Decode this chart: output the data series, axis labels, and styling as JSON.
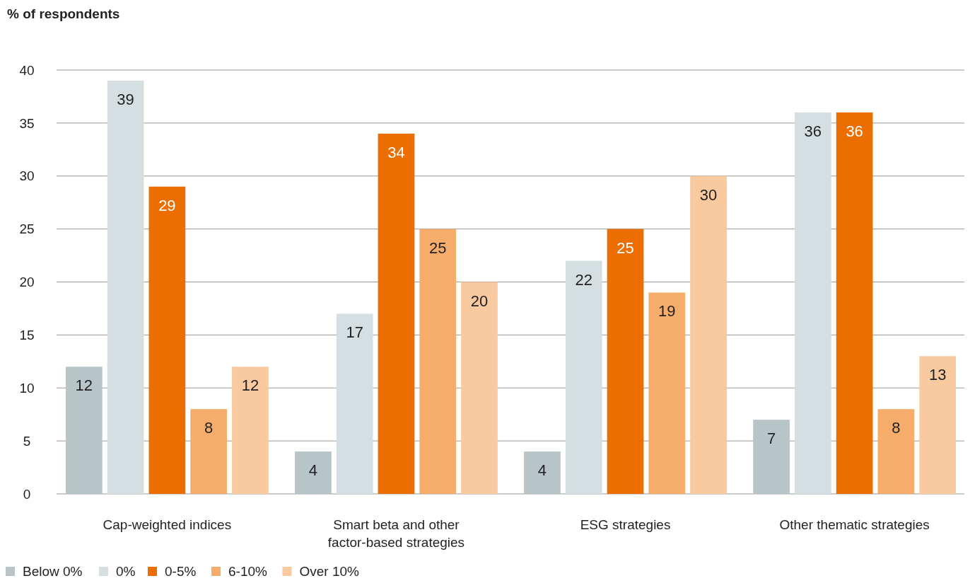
{
  "chart_data": {
    "type": "bar",
    "ylabel": "% of respondents",
    "categories": [
      "Cap-weighted indices",
      "Smart beta and other factor-based strategies",
      "ESG strategies",
      "Other thematic strategies"
    ],
    "series": [
      {
        "name": "Below 0%",
        "color": "#b7c4c8",
        "values": [
          12,
          4,
          4,
          7
        ]
      },
      {
        "name": "0%",
        "color": "#d5dfe1",
        "values": [
          39,
          17,
          22,
          36
        ]
      },
      {
        "name": "0-5%",
        "color": "#ec6e00",
        "values": [
          29,
          34,
          25,
          36
        ]
      },
      {
        "name": "6-10%",
        "color": "#f6ac6b",
        "values": [
          8,
          25,
          19,
          8
        ]
      },
      {
        "name": "Over 10%",
        "color": "#f9c9a0",
        "values": [
          12,
          20,
          30,
          13
        ]
      }
    ],
    "ylim": [
      0,
      40
    ],
    "yticks": [
      0,
      5,
      10,
      15,
      20,
      25,
      30,
      35,
      40
    ],
    "grid": "y",
    "legend": "bottom left",
    "data_labels": true
  }
}
